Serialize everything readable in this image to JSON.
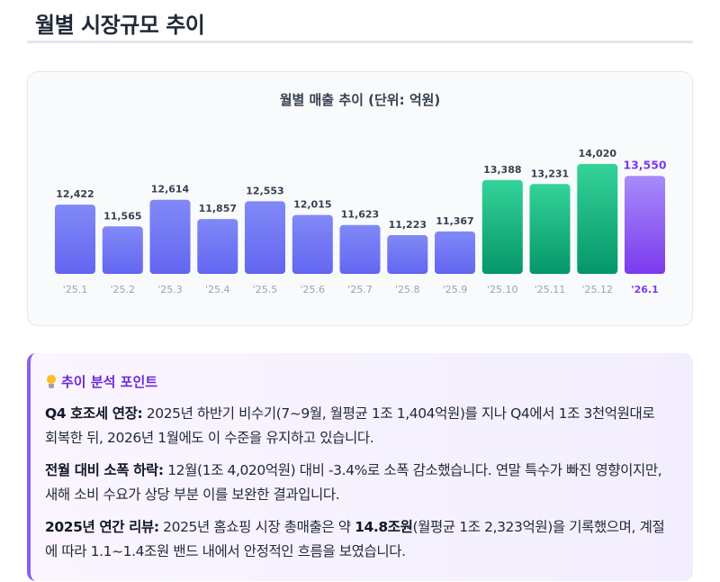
{
  "page": {
    "title": "월별 시장규모 추이"
  },
  "chart_data": {
    "type": "bar",
    "title": "월별 매출 추이 (단위: 억원)",
    "categories": [
      "'25.1",
      "'25.2",
      "'25.3",
      "'25.4",
      "'25.5",
      "'25.6",
      "'25.7",
      "'25.8",
      "'25.9",
      "'25.10",
      "'25.11",
      "'25.12",
      "'26.1"
    ],
    "values": [
      12422,
      11565,
      12614,
      11857,
      12553,
      12015,
      11623,
      11223,
      11367,
      13388,
      13231,
      14020,
      13550
    ],
    "value_labels": [
      "12,422",
      "11,565",
      "12,614",
      "11,857",
      "12,553",
      "12,015",
      "11,623",
      "11,223",
      "11,367",
      "13,388",
      "13,231",
      "14,020",
      "13,550"
    ],
    "groups": [
      "base",
      "base",
      "base",
      "base",
      "base",
      "base",
      "base",
      "base",
      "base",
      "q4",
      "q4",
      "q4",
      "current"
    ],
    "colors": {
      "base_top": "#8189f6",
      "base_bottom": "#6366f1",
      "q4_top": "#34d399",
      "q4_bottom": "#059669",
      "current_top": "#a78bfa",
      "current_bottom": "#7c3aed",
      "current_label": "#7c3aed",
      "value_label": "#374151",
      "tick_label": "#9ca3af"
    }
  },
  "insights": {
    "heading": "추이 분석 포인트",
    "icon": "lightbulb-icon",
    "p1": {
      "bold": "Q4 호조세 연장:",
      "text": " 2025년 하반기 비수기(7~9월, 월평균 1조 1,404억원)를 지나 Q4에서 1조 3천억원대로 회복한 뒤, 2026년 1월에도 이 수준을 유지하고 있습니다."
    },
    "p2": {
      "bold": "전월 대비 소폭 하락:",
      "text": " 12월(1조 4,020억원) 대비 -3.4%로 소폭 감소했습니다. 연말 특수가 빠진 영향이지만, 새해 소비 수요가 상당 부분 이를 보완한 결과입니다."
    },
    "p3": {
      "bold": "2025년 연간 리뷰:",
      "text_before": " 2025년 홈쇼핑 시장 총매출은 약 ",
      "highlight": "14.8조원",
      "text_after": "(월평균 1조 2,323억원)을 기록했으며, 계절에 따라 1.1~1.4조원 밴드 내에서 안정적인 흐름을 보였습니다."
    }
  }
}
